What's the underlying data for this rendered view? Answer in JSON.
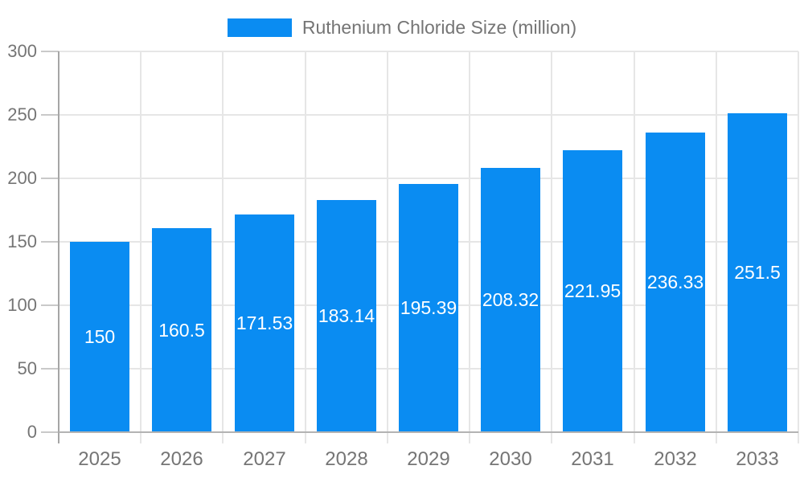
{
  "legend": {
    "label": "Ruthenium Chloride Size (million)"
  },
  "chart_data": {
    "type": "bar",
    "title": "Ruthenium Chloride Size (million)",
    "categories": [
      "2025",
      "2026",
      "2027",
      "2028",
      "2029",
      "2030",
      "2031",
      "2032",
      "2033"
    ],
    "values": [
      150,
      160.5,
      171.53,
      183.14,
      195.39,
      208.32,
      221.95,
      236.33,
      251.5
    ],
    "value_labels": [
      "150",
      "160.5",
      "171.53",
      "183.14",
      "195.39",
      "208.32",
      "221.95",
      "236.33",
      "251.5"
    ],
    "xlabel": "",
    "ylabel": "",
    "ylim": [
      0,
      300
    ],
    "ytick_step": 50,
    "ytick_labels": [
      "0",
      "50",
      "100",
      "150",
      "200",
      "250",
      "300"
    ],
    "grid": true,
    "legend_position": "top-center",
    "bar_color": "#0a8cf2",
    "value_label_color": "#ffffff"
  },
  "colors": {
    "bar": "#0a8cf2",
    "axis_text": "#757575",
    "grid": "#e6e6e6",
    "axis_line": "#a6a6a6",
    "baseline": "#b3b3b3",
    "tick": "#c9c9c9",
    "value_label": "#ffffff",
    "background": "#ffffff"
  }
}
